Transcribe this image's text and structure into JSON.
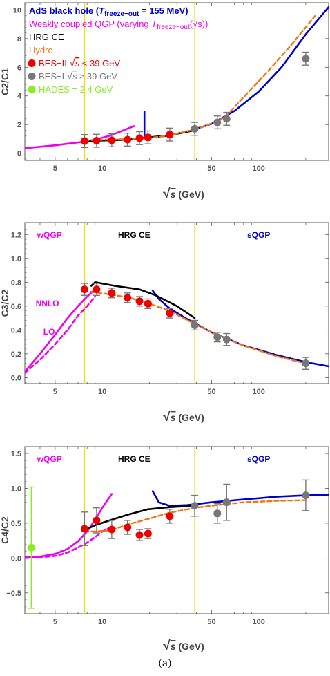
{
  "caption": "(a)",
  "colors": {
    "ads": "#0000cc",
    "wqgp": "#ee00ee",
    "hrg": "#000000",
    "hydro": "#ee7711",
    "bes2": "#ee0000",
    "bes1": "#777777",
    "hades": "#88ee22",
    "vline": "#f0e000"
  },
  "xaxis": {
    "label_sqrt": "√",
    "label_s": "s",
    "label_unit": "(GeV)",
    "ticks": [
      5,
      10,
      50,
      100
    ],
    "tick_labels": [
      "5",
      "10",
      "50",
      "100"
    ],
    "range": [
      3.2,
      280
    ]
  },
  "chart_data": [
    {
      "id": "c2c1",
      "type": "scatter",
      "ylabel": "C2/C1",
      "ylim": [
        -0.5,
        10.5
      ],
      "yticks": [
        0,
        2,
        4,
        6,
        8,
        10
      ],
      "ytick_labels": [
        "0",
        "2",
        "4",
        "6",
        "8",
        "10"
      ],
      "vlines": [
        7.7,
        39
      ],
      "legend": [
        {
          "kind": "line",
          "color": "#0000cc",
          "prefix": "AdS black hole (",
          "tvar": "T",
          "sub": "freeze−out",
          "suffix": " = 155 MeV)"
        },
        {
          "kind": "line",
          "color": "#ee00ee",
          "prefix": "Weakly coupled QGP (varying ",
          "tvar": "T",
          "sub": "freeze−out",
          "suffix": "(√s))"
        },
        {
          "kind": "text",
          "color": "#000000",
          "text": "HRG CE"
        },
        {
          "kind": "text",
          "color": "#ee7711",
          "text": "Hydro"
        },
        {
          "kind": "marker",
          "color": "#ee0000",
          "text_a": "BES−II  ",
          "sqrt": "√s",
          "text_b": " < 39 GeV"
        },
        {
          "kind": "marker",
          "color": "#777777",
          "text_a": "BES−I  ",
          "sqrt": "√s",
          "text_b": " ≥ 39 GeV"
        },
        {
          "kind": "marker",
          "color": "#88ee22",
          "text_a": "HADES = 2.4 GeV",
          "sqrt": "",
          "text_b": ""
        }
      ],
      "series": [
        {
          "name": "AdS black hole",
          "style": "solid",
          "color": "#0000cc",
          "x": [
            18.5,
            25,
            35,
            50,
            70,
            100,
            140,
            200,
            280
          ],
          "y": [
            1.05,
            1.2,
            1.5,
            2.05,
            2.95,
            4.3,
            6.0,
            8.3,
            10.2
          ]
        },
        {
          "name": "AdS spike",
          "style": "solid",
          "color": "#0000cc",
          "x": [
            18.6,
            18.6,
            19.2
          ],
          "y": [
            2.9,
            1.3,
            1.05
          ]
        },
        {
          "name": "Weakly coupled QGP",
          "style": "solid",
          "color": "#ee00ee",
          "x": [
            3.2,
            5,
            7,
            9,
            11,
            13,
            16
          ],
          "y": [
            0.35,
            0.55,
            0.75,
            0.95,
            1.2,
            1.5,
            1.9
          ]
        },
        {
          "name": "HRG CE",
          "style": "solid",
          "color": "#000000",
          "x": [
            7.7,
            11.5,
            14.5,
            19.6,
            27,
            39
          ],
          "y": [
            0.85,
            0.9,
            0.95,
            1.1,
            1.25,
            1.6
          ]
        },
        {
          "name": "Hydro",
          "style": "dashed",
          "color": "#ee7711",
          "x": [
            7.7,
            11.5,
            19.6,
            27,
            39,
            54,
            62,
            80,
            110,
            160,
            230
          ],
          "y": [
            0.9,
            0.95,
            1.05,
            1.25,
            1.65,
            2.2,
            2.6,
            3.9,
            5.5,
            7.5,
            9.6
          ]
        }
      ],
      "points": [
        {
          "group": "BES-II",
          "x": [
            7.7,
            9.2,
            11.5,
            14.5,
            17.3,
            19.6,
            27
          ],
          "y": [
            0.85,
            0.87,
            0.9,
            0.95,
            1.05,
            1.1,
            1.3
          ],
          "err": [
            0.45,
            0.45,
            0.45,
            0.45,
            0.45,
            0.45,
            0.45
          ]
        },
        {
          "group": "BES-I",
          "x": [
            39,
            54.4,
            62.4,
            200
          ],
          "y": [
            1.7,
            2.15,
            2.4,
            6.6
          ],
          "err": [
            0.45,
            0.45,
            0.45,
            0.45
          ]
        }
      ]
    },
    {
      "id": "c3c2",
      "type": "scatter",
      "ylabel": "C3/C2",
      "ylim": [
        -0.05,
        1.3
      ],
      "yticks": [
        0.0,
        0.2,
        0.4,
        0.6,
        0.8,
        1.0,
        1.2
      ],
      "ytick_labels": [
        "0.0",
        "0.2",
        "0.4",
        "0.6",
        "0.8",
        "1.0",
        "1.2"
      ],
      "vlines": [
        7.7,
        39
      ],
      "regions": [
        {
          "text": "wQGP",
          "color": "#ee00ee",
          "x": 4.6
        },
        {
          "text": "HRG CE",
          "color": "#000000",
          "x": 16
        },
        {
          "text": "sQGP",
          "color": "#0000cc",
          "x": 100
        }
      ],
      "annotations": [
        {
          "text": "NNLO",
          "color": "#ee00ee",
          "x": 3.75,
          "y": 0.6
        },
        {
          "text": "LO",
          "color": "#ee00ee",
          "x": 4.2,
          "y": 0.36
        }
      ],
      "series": [
        {
          "name": "sQGP",
          "style": "solid",
          "color": "#0000cc",
          "x": [
            21,
            23,
            27,
            35,
            50,
            80,
            130,
            200,
            280
          ],
          "y": [
            0.73,
            0.66,
            0.58,
            0.49,
            0.38,
            0.27,
            0.19,
            0.13,
            0.095
          ]
        },
        {
          "name": "NNLO",
          "style": "solid",
          "color": "#ee00ee",
          "x": [
            3.2,
            4,
            5,
            6,
            7,
            8,
            9
          ],
          "y": [
            0.05,
            0.2,
            0.36,
            0.5,
            0.6,
            0.68,
            0.74
          ]
        },
        {
          "name": "LO",
          "style": "dashed",
          "color": "#ee00ee",
          "x": [
            3.2,
            4,
            5,
            6,
            7,
            8,
            9
          ],
          "y": [
            0.04,
            0.15,
            0.28,
            0.4,
            0.52,
            0.6,
            0.68
          ]
        },
        {
          "name": "HRG CE",
          "style": "solid",
          "color": "#000000",
          "x": [
            8.5,
            9,
            12,
            17.3,
            22,
            30,
            39
          ],
          "y": [
            0.77,
            0.8,
            0.77,
            0.74,
            0.69,
            0.6,
            0.5
          ]
        },
        {
          "name": "Hydro",
          "style": "dashed",
          "color": "#ee7711",
          "x": [
            8.4,
            11,
            15,
            20,
            27,
            39,
            54,
            80,
            130,
            200
          ],
          "y": [
            0.72,
            0.7,
            0.67,
            0.62,
            0.56,
            0.45,
            0.36,
            0.27,
            0.18,
            0.12
          ]
        }
      ],
      "points": [
        {
          "group": "BES-II",
          "x": [
            7.7,
            9.2,
            11.5,
            14.5,
            17.3,
            19.6,
            27
          ],
          "y": [
            0.74,
            0.74,
            0.71,
            0.67,
            0.64,
            0.62,
            0.54
          ],
          "err": [
            0.05,
            0.05,
            0.04,
            0.04,
            0.04,
            0.04,
            0.04
          ]
        },
        {
          "group": "BES-I",
          "x": [
            39,
            54.4,
            62.4,
            200
          ],
          "y": [
            0.44,
            0.34,
            0.32,
            0.12
          ],
          "err": [
            0.04,
            0.04,
            0.05,
            0.05
          ]
        }
      ]
    },
    {
      "id": "c4c2",
      "type": "scatter",
      "ylabel": "C4/C2",
      "ylim": [
        -0.8,
        1.6
      ],
      "yticks": [
        -0.5,
        0.0,
        0.5,
        1.0,
        1.5
      ],
      "ytick_labels": [
        "−0.5",
        "0.0",
        "0.5",
        "1.0",
        "1.5"
      ],
      "vlines": [
        7.7,
        39
      ],
      "regions": [
        {
          "text": "wQGP",
          "color": "#ee00ee",
          "x": 4.6
        },
        {
          "text": "HRG CE",
          "color": "#000000",
          "x": 16
        },
        {
          "text": "sQGP",
          "color": "#0000cc",
          "x": 100
        }
      ],
      "series": [
        {
          "name": "sQGP",
          "style": "solid",
          "color": "#0000cc",
          "x": [
            21,
            23,
            27,
            35,
            50,
            80,
            130,
            200,
            280
          ],
          "y": [
            0.96,
            0.8,
            0.75,
            0.76,
            0.8,
            0.84,
            0.88,
            0.9,
            0.91
          ]
        },
        {
          "name": "wQGP NNLO",
          "style": "solid",
          "color": "#ee00ee",
          "x": [
            3.2,
            4,
            5,
            6,
            7,
            8,
            9,
            10,
            11.5
          ],
          "y": [
            0.01,
            0.02,
            0.06,
            0.13,
            0.24,
            0.38,
            0.55,
            0.72,
            0.92
          ]
        },
        {
          "name": "wQGP LO",
          "style": "dashed",
          "color": "#ee00ee",
          "x": [
            3.2,
            4,
            5,
            6,
            7,
            8,
            9,
            10,
            11.5
          ],
          "y": [
            0.0,
            0.01,
            0.03,
            0.08,
            0.15,
            0.22,
            0.3,
            0.38,
            0.45
          ]
        },
        {
          "name": "HRG CE",
          "style": "solid",
          "color": "#000000",
          "x": [
            7.7,
            9,
            11.5,
            14.5,
            19.6,
            27,
            39
          ],
          "y": [
            0.4,
            0.47,
            0.55,
            0.62,
            0.7,
            0.73,
            0.75
          ]
        },
        {
          "name": "Hydro",
          "style": "dashed",
          "color": "#ee7711",
          "x": [
            7.7,
            9,
            11.5,
            14.5,
            19.6,
            27,
            39,
            54,
            80,
            130,
            200
          ],
          "y": [
            0.38,
            0.38,
            0.4,
            0.48,
            0.56,
            0.65,
            0.72,
            0.76,
            0.8,
            0.82,
            0.83
          ]
        }
      ],
      "points": [
        {
          "group": "BES-II",
          "x": [
            7.7,
            9.2,
            11.5,
            14.5,
            17.3,
            19.6,
            27
          ],
          "y": [
            0.42,
            0.54,
            0.41,
            0.44,
            0.33,
            0.35,
            0.6
          ],
          "err": [
            0.24,
            0.18,
            0.13,
            0.1,
            0.08,
            0.07,
            0.1
          ]
        },
        {
          "group": "BES-I",
          "x": [
            39,
            54.4,
            62.4,
            200
          ],
          "y": [
            0.75,
            0.64,
            0.8,
            0.9
          ],
          "err": [
            0.15,
            0.14,
            0.26,
            0.22
          ]
        },
        {
          "group": "HADES",
          "x": [
            2.4
          ],
          "y": [
            0.15
          ],
          "err": [
            0.87
          ]
        }
      ]
    }
  ]
}
